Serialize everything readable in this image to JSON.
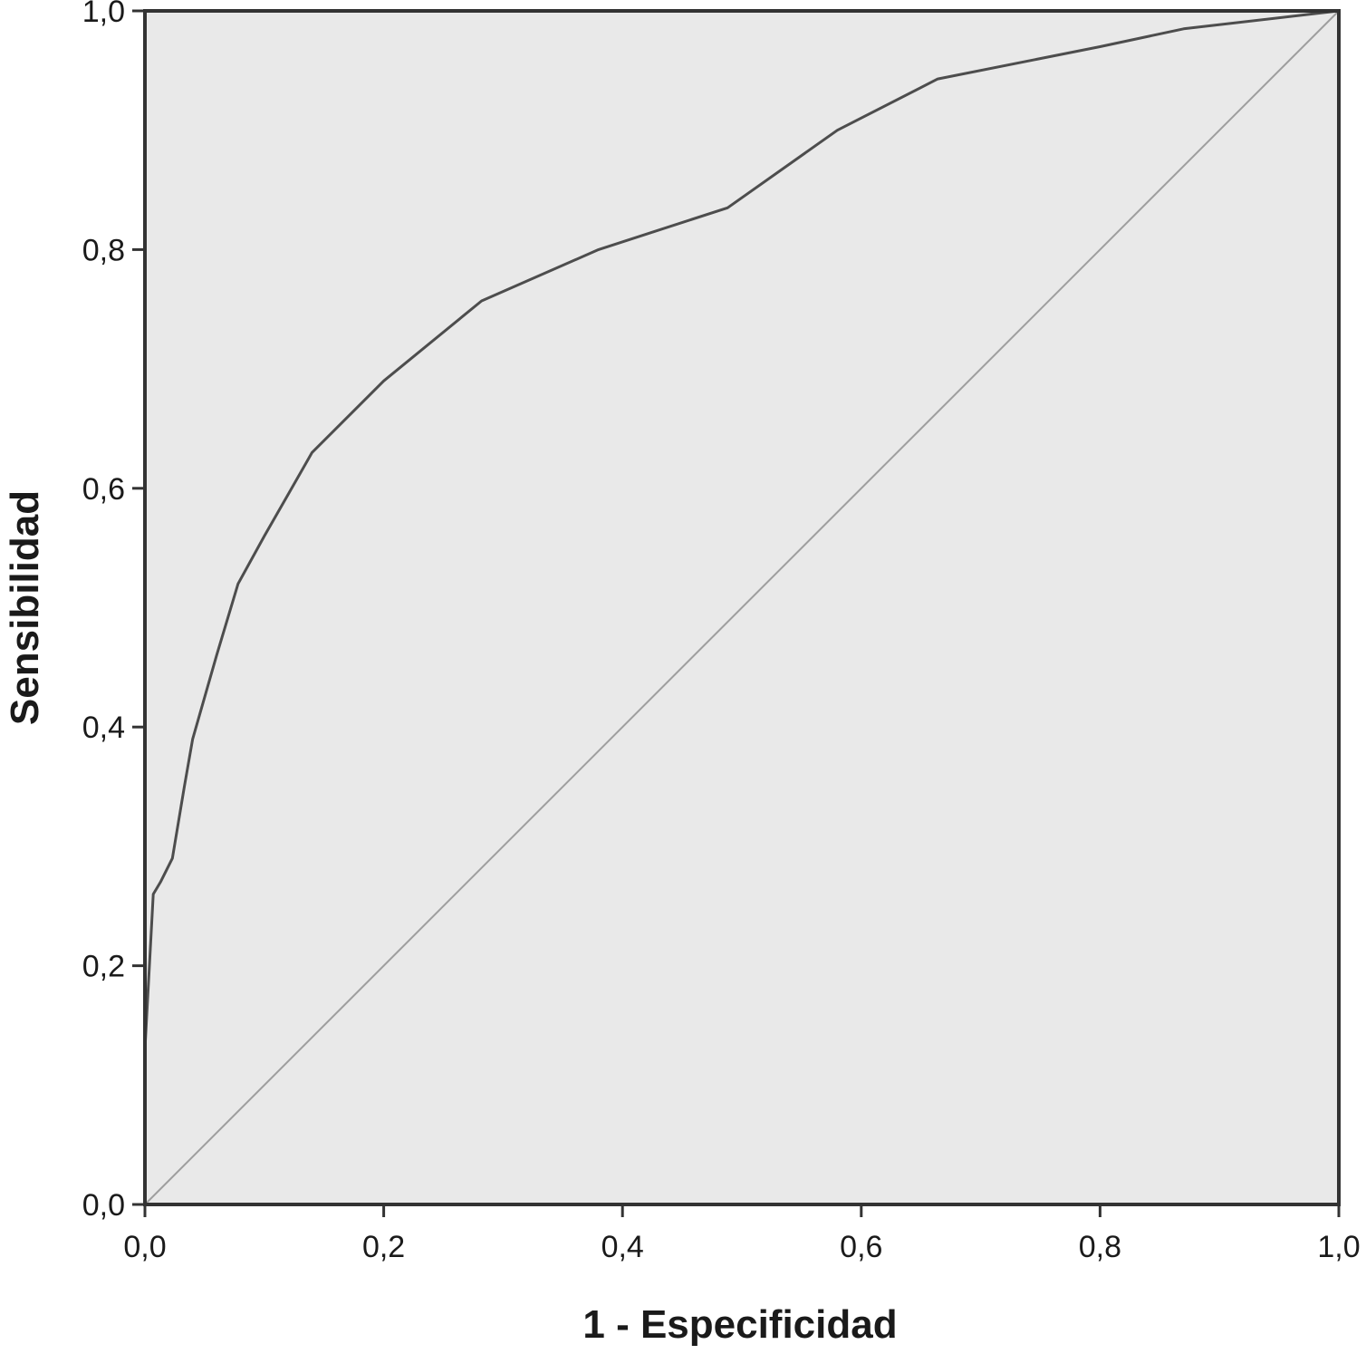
{
  "chart_data": {
    "type": "line",
    "xlabel": "1 - Especificidad",
    "ylabel": "Sensibilidad",
    "xlim": [
      0,
      1
    ],
    "ylim": [
      0,
      1
    ],
    "xticks": [
      "0,0",
      "0,2",
      "0,4",
      "0,6",
      "0,8",
      "1,0"
    ],
    "yticks": [
      "0,0",
      "0,2",
      "0,4",
      "0,6",
      "0,8",
      "1,0"
    ],
    "grid": false,
    "series": [
      {
        "x": [
          0.0,
          0.0,
          0.007,
          0.013,
          0.023,
          0.033,
          0.04,
          0.06,
          0.078,
          0.1,
          0.12,
          0.14,
          0.2,
          0.282,
          0.38,
          0.488,
          0.58,
          0.664,
          0.8,
          0.87,
          1.0
        ],
        "y": [
          0.0,
          0.13,
          0.26,
          0.27,
          0.29,
          0.35,
          0.39,
          0.46,
          0.52,
          0.56,
          0.595,
          0.63,
          0.69,
          0.757,
          0.8,
          0.835,
          0.9,
          0.943,
          0.97,
          0.985,
          1.0
        ],
        "color": "#4d4d4d"
      },
      {
        "x": [
          0,
          1
        ],
        "y": [
          0,
          1
        ],
        "color": "#9e9e9e"
      }
    ],
    "plot_background": "#e9e9e9",
    "axis_color": "#333333"
  }
}
